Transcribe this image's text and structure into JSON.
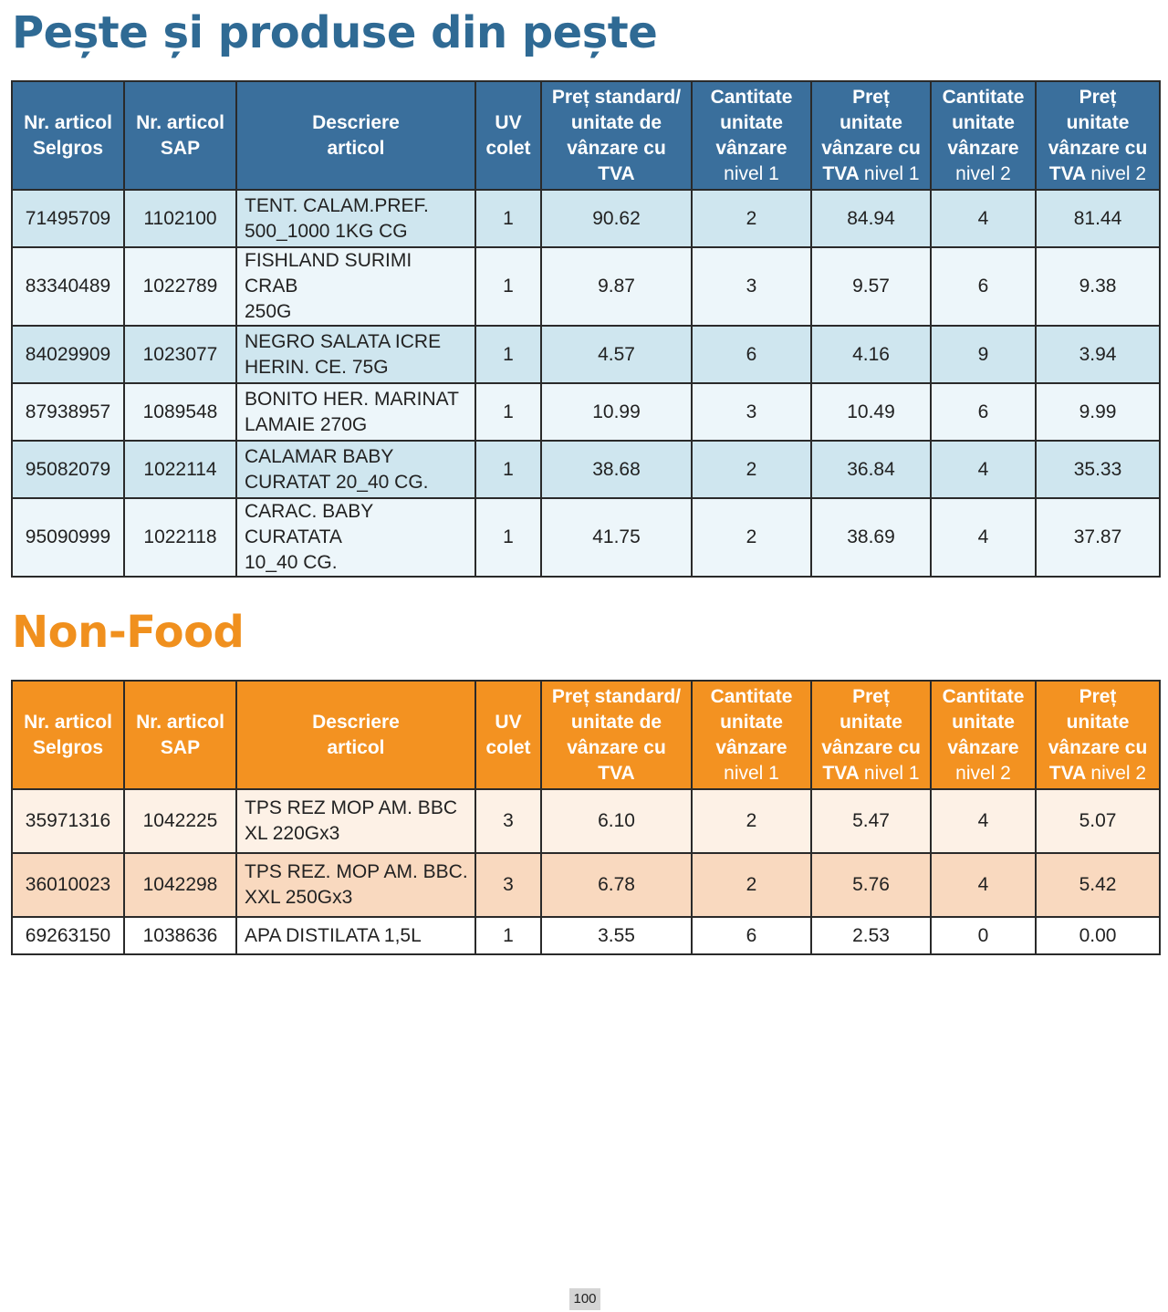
{
  "fish_section": {
    "title": "Pește și produse din pește",
    "headers": {
      "selgros": [
        "Nr. articol",
        "Selgros"
      ],
      "sap": [
        "Nr. articol",
        "SAP"
      ],
      "desc": [
        "Descriere",
        "articol"
      ],
      "uv": [
        "UV",
        "colet"
      ],
      "price_std": [
        "Preț standard/",
        "unitate de",
        "vânzare cu",
        "TVA"
      ],
      "qty1": [
        "Cantitate",
        "unitate",
        "vânzare",
        "nivel 1"
      ],
      "price1": [
        "Preț",
        "unitate",
        "vânzare cu",
        "TVA",
        "nivel 1"
      ],
      "qty2": [
        "Cantitate",
        "unitate",
        "vânzare",
        "nivel 2"
      ],
      "price2": [
        "Preț",
        "unitate",
        "vânzare cu",
        "TVA",
        "nivel 2"
      ]
    },
    "rows": [
      {
        "selgros": "71495709",
        "sap": "1102100",
        "desc1": "TENT. CALAM.PREF.",
        "desc2": "500_1000 1KG CG",
        "uv": "1",
        "price_std": "90.62",
        "qty1": "2",
        "price1": "84.94",
        "qty2": "4",
        "price2": "81.44"
      },
      {
        "selgros": "83340489",
        "sap": "1022789",
        "desc1": "FISHLAND SURIMI CRAB",
        "desc2": "250G",
        "uv": "1",
        "price_std": "9.87",
        "qty1": "3",
        "price1": "9.57",
        "qty2": "6",
        "price2": "9.38"
      },
      {
        "selgros": "84029909",
        "sap": "1023077",
        "desc1": "NEGRO SALATA ICRE",
        "desc2": "HERIN. CE. 75G",
        "uv": "1",
        "price_std": "4.57",
        "qty1": "6",
        "price1": "4.16",
        "qty2": "9",
        "price2": "3.94"
      },
      {
        "selgros": "87938957",
        "sap": "1089548",
        "desc1": "BONITO HER. MARINAT",
        "desc2": "LAMAIE 270G",
        "uv": "1",
        "price_std": "10.99",
        "qty1": "3",
        "price1": "10.49",
        "qty2": "6",
        "price2": "9.99"
      },
      {
        "selgros": "95082079",
        "sap": "1022114",
        "desc1": "CALAMAR BABY",
        "desc2": "CURATAT 20_40 CG.",
        "uv": "1",
        "price_std": "38.68",
        "qty1": "2",
        "price1": "36.84",
        "qty2": "4",
        "price2": "35.33"
      },
      {
        "selgros": "95090999",
        "sap": "1022118",
        "desc1": "CARAC. BABY CURATATA",
        "desc2": "10_40 CG.",
        "uv": "1",
        "price_std": "41.75",
        "qty1": "2",
        "price1": "38.69",
        "qty2": "4",
        "price2": "37.87"
      }
    ]
  },
  "nonfood_section": {
    "title": "Non-Food",
    "headers": {
      "selgros": [
        "Nr. articol",
        "Selgros"
      ],
      "sap": [
        "Nr. articol",
        "SAP"
      ],
      "desc": [
        "Descriere",
        "articol"
      ],
      "uv": [
        "UV",
        "colet"
      ],
      "price_std": [
        "Preț standard/",
        "unitate de",
        "vânzare cu",
        "TVA"
      ],
      "qty1": [
        "Cantitate",
        "unitate",
        "vânzare",
        "nivel 1"
      ],
      "price1": [
        "Preț",
        "unitate",
        "vânzare cu",
        "TVA",
        "nivel 1"
      ],
      "qty2": [
        "Cantitate",
        "unitate",
        "vânzare",
        "nivel 2"
      ],
      "price2": [
        "Preț",
        "unitate",
        "vânzare cu",
        "TVA",
        "nivel 2"
      ]
    },
    "rows": [
      {
        "selgros": "35971316",
        "sap": "1042225",
        "desc1": "TPS REZ MOP AM. BBC",
        "desc2": "XL 220Gx3",
        "uv": "3",
        "price_std": "6.10",
        "qty1": "2",
        "price1": "5.47",
        "qty2": "4",
        "price2": "5.07"
      },
      {
        "selgros": "36010023",
        "sap": "1042298",
        "desc1": "TPS REZ. MOP AM. BBC.",
        "desc2": "XXL 250Gx3",
        "uv": "3",
        "price_std": "6.78",
        "qty1": "2",
        "price1": "5.76",
        "qty2": "4",
        "price2": "5.42"
      },
      {
        "selgros": "69263150",
        "sap": "1038636",
        "desc1": "APA DISTILATA 1,5L",
        "desc2": "",
        "uv": "1",
        "price_std": "3.55",
        "qty1": "6",
        "price1": "2.53",
        "qty2": "0",
        "price2": "0.00"
      }
    ]
  },
  "page_number": "100"
}
